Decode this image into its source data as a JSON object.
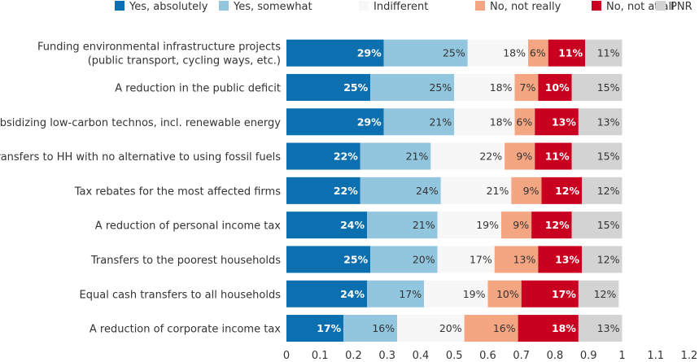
{
  "chart_data": {
    "type": "bar",
    "orientation": "horizontal",
    "stacked": true,
    "legend_position": "top",
    "grid": false,
    "xlim": [
      0,
      1.2
    ],
    "x_ticks": [
      "0",
      "0.1",
      "0.2",
      "0.3",
      "0.4",
      "0.5",
      "0.6",
      "0.7",
      "0.8",
      "0.9",
      "1",
      "1.1",
      "1.2"
    ],
    "x_tick_values": [
      0,
      0.1,
      0.2,
      0.3,
      0.4,
      0.5,
      0.6,
      0.7,
      0.8,
      0.9,
      1.0,
      1.1,
      1.2
    ],
    "categories": [
      [
        "Funding environmental infrastructure projects",
        "(public transport, cycling ways, etc.)"
      ],
      [
        "A reduction in the public deficit"
      ],
      [
        "Subsidizing low-carbon technos, incl. renewable energy"
      ],
      [
        "Transfers to HH with no alternative to using fossil fuels"
      ],
      [
        "Tax rebates for the most affected firms"
      ],
      [
        "A reduction of personal income tax"
      ],
      [
        "Transfers to the poorest households"
      ],
      [
        "Equal cash transfers to all households"
      ],
      [
        "A reduction of corporate income tax"
      ]
    ],
    "series": [
      {
        "name": "Yes, absolutely",
        "color": "#0b6fb0",
        "label_color": "#ffffff",
        "label_bold": true,
        "values": [
          0.29,
          0.25,
          0.29,
          0.22,
          0.22,
          0.24,
          0.25,
          0.24,
          0.17
        ],
        "labels": [
          "29%",
          "25%",
          "29%",
          "22%",
          "22%",
          "24%",
          "25%",
          "24%",
          "17%"
        ]
      },
      {
        "name": "Yes, somewhat",
        "color": "#92c5de",
        "label_color": "#333333",
        "label_bold": false,
        "values": [
          0.25,
          0.25,
          0.21,
          0.21,
          0.24,
          0.21,
          0.2,
          0.17,
          0.16
        ],
        "labels": [
          "25%",
          "25%",
          "21%",
          "21%",
          "24%",
          "21%",
          "20%",
          "17%",
          "16%"
        ]
      },
      {
        "name": "Indifferent",
        "color": "#f7f7f7",
        "label_color": "#333333",
        "label_bold": false,
        "values": [
          0.18,
          0.18,
          0.18,
          0.22,
          0.21,
          0.19,
          0.17,
          0.19,
          0.2
        ],
        "labels": [
          "18%",
          "18%",
          "18%",
          "22%",
          "21%",
          "19%",
          "17%",
          "19%",
          "20%"
        ]
      },
      {
        "name": "No, not really",
        "color": "#f4a582",
        "label_color": "#333333",
        "label_bold": false,
        "values": [
          0.06,
          0.07,
          0.06,
          0.09,
          0.09,
          0.09,
          0.13,
          0.1,
          0.16
        ],
        "labels": [
          "6%",
          "7%",
          "6%",
          "9%",
          "9%",
          "9%",
          "13%",
          "10%",
          "16%"
        ]
      },
      {
        "name": "No, not at all",
        "color": "#ca0020",
        "label_color": "#ffffff",
        "label_bold": true,
        "values": [
          0.11,
          0.1,
          0.13,
          0.11,
          0.12,
          0.12,
          0.13,
          0.17,
          0.18
        ],
        "labels": [
          "11%",
          "10%",
          "13%",
          "11%",
          "12%",
          "12%",
          "13%",
          "17%",
          "18%"
        ]
      },
      {
        "name": "PNR",
        "color": "#d3d3d3",
        "label_color": "#333333",
        "label_bold": false,
        "values": [
          0.11,
          0.15,
          0.13,
          0.15,
          0.12,
          0.15,
          0.12,
          0.12,
          0.13
        ],
        "labels": [
          "11%",
          "15%",
          "13%",
          "15%",
          "12%",
          "15%",
          "12%",
          "12%",
          "13%"
        ]
      }
    ]
  }
}
